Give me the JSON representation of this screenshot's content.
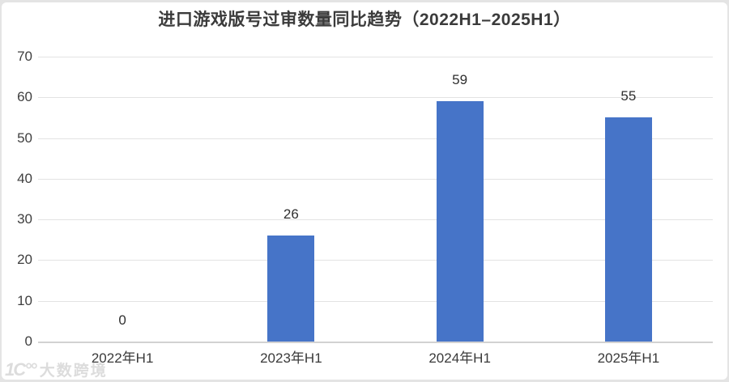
{
  "title": "进口游戏版号过审数量同比趋势（2022H1–2025H1）",
  "chart_data": {
    "type": "bar",
    "title": "进口游戏版号过审数量同比趋势（2022H1–2025H1）",
    "categories": [
      "2022年H1",
      "2023年H1",
      "2024年H1",
      "2025年H1"
    ],
    "values": [
      0,
      26,
      59,
      55
    ],
    "value_labels": [
      "0",
      "26",
      "59",
      "55"
    ],
    "yticks": [
      0,
      10,
      20,
      30,
      40,
      50,
      60,
      70
    ],
    "ylim": [
      0,
      70
    ],
    "xlabel": "",
    "ylabel": "",
    "grid": true,
    "legend": "none",
    "bar_color": "#4674c8"
  },
  "watermark": {
    "logo_text": "1C°°",
    "text": "大数跨境"
  },
  "colors": {
    "bar": "#4674c8",
    "grid": "#e3e3e3",
    "axis_line": "#d2d2d2",
    "title_text": "#3b3b3b",
    "tick_text": "#3f3f3f",
    "value_text": "#2f2f2f",
    "card_bg": "#ffffff",
    "page_edge": "#e4e4e4"
  }
}
